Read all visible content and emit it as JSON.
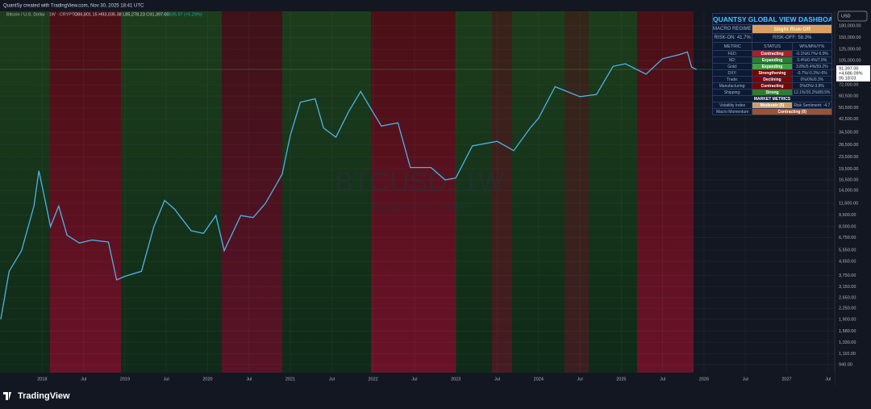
{
  "header": {
    "caption": "QuantSy created with TradingView.com, Nov 30, 2025 18:41 UTC"
  },
  "legend": {
    "symbol": "Bitcoin / U.S. Dollar · 1W · CRYPTO",
    "ohlc": "O86,801.15 H93,035.38 L85,278.23 C91,397.00",
    "change": "+4,595.97 (+5.29%)"
  },
  "watermark": {
    "symbol": "BTCUSD, 1W",
    "name": "Bitcoin / U.S. Dollar"
  },
  "currency": "USD",
  "last_price": {
    "price": "91,397.00",
    "change": "+4,686.09%",
    "countdown": "05:18:03"
  },
  "chart": {
    "type": "line",
    "log_scale": true,
    "color": "#4fb3e8",
    "x": [
      2017.5,
      2017.6,
      2017.75,
      2017.9,
      2017.96,
      2018.05,
      2018.1,
      2018.2,
      2018.3,
      2018.45,
      2018.6,
      2018.8,
      2018.9,
      2019.0,
      2019.2,
      2019.35,
      2019.48,
      2019.6,
      2019.8,
      2019.95,
      2020.1,
      2020.2,
      2020.4,
      2020.55,
      2020.7,
      2020.9,
      2021.0,
      2021.12,
      2021.3,
      2021.4,
      2021.55,
      2021.7,
      2021.85,
      2022.0,
      2022.1,
      2022.3,
      2022.45,
      2022.7,
      2022.87,
      2023.0,
      2023.2,
      2023.5,
      2023.7,
      2023.9,
      2024.0,
      2024.2,
      2024.5,
      2024.7,
      2024.9,
      2025.05,
      2025.3,
      2025.5,
      2025.7,
      2025.8,
      2025.85,
      2025.91
    ],
    "values": [
      1900,
      4000,
      5500,
      11000,
      19000,
      11000,
      8000,
      11000,
      7000,
      6200,
      6500,
      6300,
      3500,
      3700,
      4000,
      8000,
      12000,
      10500,
      7500,
      7200,
      9500,
      5500,
      9500,
      9200,
      11500,
      18000,
      33000,
      55000,
      58000,
      37000,
      32000,
      47000,
      65000,
      47000,
      38000,
      40000,
      20000,
      20000,
      16500,
      17000,
      28000,
      30000,
      26000,
      37000,
      43000,
      70000,
      60000,
      62000,
      96000,
      100000,
      85000,
      108000,
      115000,
      120000,
      95000,
      91397
    ],
    "xlim": [
      2017.49,
      2027.58
    ],
    "ylim": [
      830,
      225500
    ],
    "xticks": [
      2018,
      {
        "value": 2018.5,
        "label": "Jul"
      },
      2019,
      {
        "value": 2019.5,
        "label": "Jul"
      },
      2020,
      {
        "value": 2020.5,
        "label": "Jul"
      },
      2021,
      {
        "value": 2021.5,
        "label": "Jul"
      },
      2022,
      {
        "value": 2022.5,
        "label": "Jul"
      },
      2023,
      {
        "value": 2023.5,
        "label": "Jul"
      },
      2024,
      {
        "value": 2024.5,
        "label": "Jul"
      },
      2025,
      {
        "value": 2025.5,
        "label": "Jul"
      },
      2026,
      {
        "value": 2026.5,
        "label": "Jul"
      },
      2027,
      {
        "value": 2027.5,
        "label": "Jul"
      }
    ],
    "yticks": [
      {
        "value": 180000,
        "label": "180,000.00"
      },
      {
        "value": 150000,
        "label": "150,000.00"
      },
      {
        "value": 125000,
        "label": "125,000.00"
      },
      {
        "value": 105000,
        "label": "105,000.00"
      },
      {
        "value": 72000,
        "label": "72,000.00"
      },
      {
        "value": 60500,
        "label": "60,500.00"
      },
      {
        "value": 50500,
        "label": "50,500.00"
      },
      {
        "value": 42500,
        "label": "42,500.00"
      },
      {
        "value": 34500,
        "label": "34,500.00"
      },
      {
        "value": 28500,
        "label": "28,500.00"
      },
      {
        "value": 23500,
        "label": "23,500.00"
      },
      {
        "value": 19500,
        "label": "19,500.00"
      },
      {
        "value": 16500,
        "label": "16,500.00"
      },
      {
        "value": 14000,
        "label": "14,000.00"
      },
      {
        "value": 11500,
        "label": "11,500.00"
      },
      {
        "value": 9600,
        "label": "9,600.00"
      },
      {
        "value": 8000,
        "label": "8,000.00"
      },
      {
        "value": 6750,
        "label": "6,750.00"
      },
      {
        "value": 5550,
        "label": "5,550.00"
      },
      {
        "value": 4650,
        "label": "4,650.00"
      },
      {
        "value": 3750,
        "label": "3,750.00"
      },
      {
        "value": 3150,
        "label": "3,150.00"
      },
      {
        "value": 2650,
        "label": "2,650.00"
      },
      {
        "value": 2250,
        "label": "2,250.00"
      },
      {
        "value": 1900,
        "label": "1,900.00"
      },
      {
        "value": 1580,
        "label": "1,580.00"
      },
      {
        "value": 1330,
        "label": "1,330.00"
      },
      {
        "value": 1110,
        "label": "1,110.00"
      },
      {
        "value": 940,
        "label": "940.00"
      }
    ]
  },
  "dashboard": {
    "title": "QUANTSY GLOBAL VIEW DASHBOARD",
    "regime_label": "MACRO REGIME:",
    "regime": "Slight Risk-Off",
    "risk_on": "RISK-ON: 41.7%",
    "risk_off": "RISK-OFF: 58.3%",
    "columns": [
      "METRIC",
      "STATUS",
      "W%/M%/Y%"
    ],
    "rows": [
      {
        "metric": "FED:",
        "status": "Contracting",
        "change": "-0.1%/0.7%/-6.9%",
        "color": "#b71c1c"
      },
      {
        "metric": "M2:",
        "status": "Expanding",
        "change": "0.4%/0.4%/7.8%",
        "color": "#2e7d32"
      },
      {
        "metric": "Gold:",
        "status": "Expanding",
        "change": "3.8%/5.4%/59.2%",
        "color": "#43a047"
      },
      {
        "metric": "DXY:",
        "status": "Strengthening",
        "change": "-0.7%/-0.3%/-6%",
        "color": "#7f0000"
      },
      {
        "metric": "Trade:",
        "status": "Declining",
        "change": "0%/0%/0.3%",
        "color": "#7f0000"
      },
      {
        "metric": "Manufacturing:",
        "status": "Contracting",
        "change": "0%/0%/-3.8%",
        "color": "#7f0000"
      },
      {
        "metric": "Shipping:",
        "status": "Strong",
        "change": "12.1%/20.2%/89.5%",
        "color": "#2e7d32"
      }
    ],
    "section": "MARKET METRICS",
    "volatility": {
      "metric": "Volatility Index",
      "status": "Moderate (5)",
      "note": "Risk Sentiment: -4.7",
      "color": "#c9a26b"
    },
    "momentum": {
      "metric": "Macro Momentum",
      "status": "Contracting (0)",
      "color": "#a0522d"
    }
  },
  "footer": {
    "brand": "TradingView"
  }
}
